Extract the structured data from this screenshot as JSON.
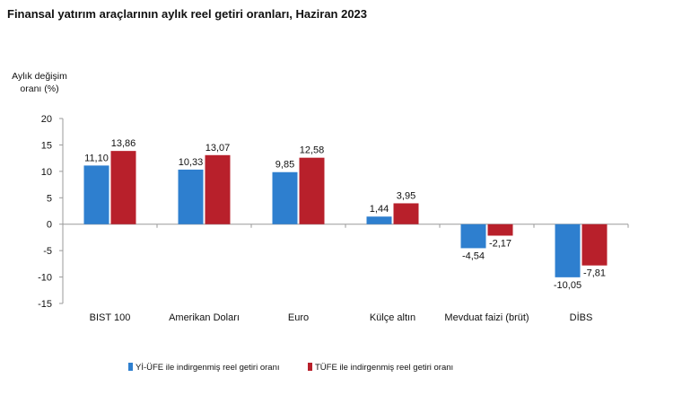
{
  "title": "Finansal yatırım araçlarının aylık reel getiri oranları, Haziran 2023",
  "chart_data": {
    "type": "bar",
    "title": "Finansal yatırım araçlarının aylık reel getiri oranları, Haziran 2023",
    "ylabel_line1": "Aylık değişim",
    "ylabel_line2": "oranı (%)",
    "xlabel": "",
    "ylim": [
      -15,
      20
    ],
    "yticks": [
      -15,
      -10,
      -5,
      0,
      5,
      10,
      15,
      20
    ],
    "grid": false,
    "legend_position": "bottom",
    "categories": [
      "BIST 100",
      "Amerikan Doları",
      "Euro",
      "Külçe altın",
      "Mevduat faizi (brüt)",
      "DİBS"
    ],
    "series": [
      {
        "name": "Yİ-ÜFE ile indirgenmiş reel getiri oranı",
        "color": "#2e7fcf",
        "values": [
          11.1,
          10.33,
          9.85,
          1.44,
          -4.54,
          -10.05
        ],
        "labels": [
          "11,10",
          "10,33",
          "9,85",
          "1,44",
          "-4,54",
          "-10,05"
        ]
      },
      {
        "name": "TÜFE ile indirgenmiş reel getiri oranı",
        "color": "#b8202b",
        "values": [
          13.86,
          13.07,
          12.58,
          3.95,
          -2.17,
          -7.81
        ],
        "labels": [
          "13,86",
          "13,07",
          "12,58",
          "3,95",
          "-2,17",
          "-7,81"
        ]
      }
    ]
  }
}
